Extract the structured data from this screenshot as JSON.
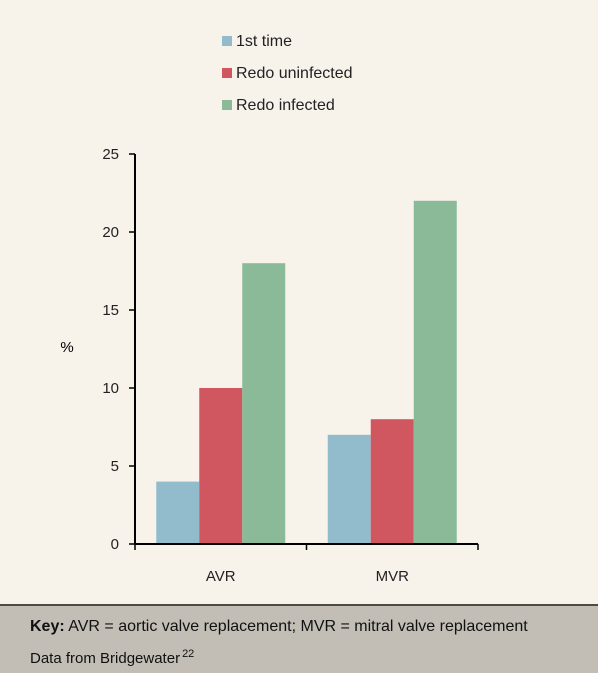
{
  "chart_data": {
    "type": "bar",
    "categories": [
      "AVR",
      "MVR"
    ],
    "series": [
      {
        "name": "1st time",
        "values": [
          4,
          7
        ],
        "color": "#92bccb"
      },
      {
        "name": "Redo uninfected",
        "values": [
          10,
          8
        ],
        "color": "#d05760"
      },
      {
        "name": "Redo infected",
        "values": [
          18,
          22
        ],
        "color": "#8bba98"
      }
    ],
    "title": "",
    "xlabel": "",
    "ylabel": "%",
    "ylim": [
      0,
      25
    ],
    "yticks": [
      0,
      5,
      10,
      15,
      20,
      25
    ],
    "grid": false,
    "legend_position": "top-center"
  },
  "footer": {
    "key_label": "Key:",
    "key_text": " AVR = aortic valve replacement; MVR = mitral valve replacement",
    "source_text": "Data from Bridgewater",
    "source_ref": "22"
  }
}
